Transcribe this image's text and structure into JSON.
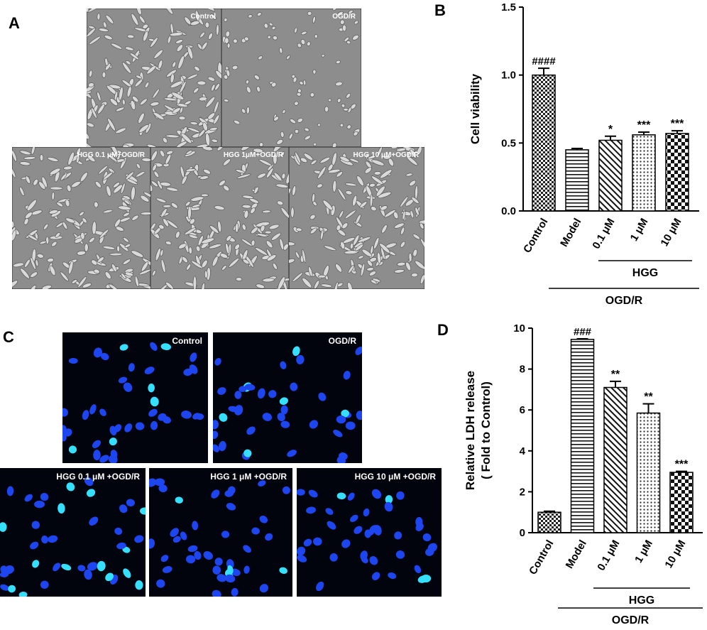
{
  "panel_labels": [
    "A",
    "B",
    "C",
    "D"
  ],
  "micrographs": {
    "A": [
      "Control",
      "OGD/R",
      "HGG 0.1 μM+OGD/R",
      "HGG 1μM+OGD/R",
      "HGG 10 μM+OGD/R"
    ],
    "C": [
      "Control",
      "OGD/R",
      "HGG 0.1 μM +OGD/R",
      "HGG 1 μM +OGD/R",
      "HGG 10 μM +OGD/R"
    ]
  },
  "chart_data": [
    {
      "type": "bar",
      "y_label": "Cell viability",
      "categories": [
        "Control",
        "Model",
        "0.1 μM",
        "1 μM",
        "10 μM"
      ],
      "values": [
        1.0,
        0.45,
        0.52,
        0.56,
        0.57
      ],
      "errors": [
        0.05,
        0.01,
        0.03,
        0.02,
        0.02
      ],
      "annotations": [
        "####",
        null,
        "*",
        "***",
        "***"
      ],
      "group_labels": [
        "HGG",
        "OGD/R"
      ],
      "color": "#000000",
      "ylim": [
        0,
        1.5
      ],
      "yticks": [
        {
          "value": 0,
          "label": "0.0"
        },
        {
          "value": 0.5,
          "label": "0.5"
        },
        {
          "value": 1,
          "label": "1.0"
        },
        {
          "value": 1.5,
          "label": "1.5"
        }
      ]
    },
    {
      "type": "bar",
      "y_label": [
        "Relative LDH release",
        "( Fold to Control)"
      ],
      "categories": [
        "Control",
        "Model",
        "0.1 μM",
        "1 μM",
        "10 μM"
      ],
      "values": [
        1.0,
        9.45,
        7.1,
        5.85,
        2.95
      ],
      "errors": [
        0.05,
        0.03,
        0.3,
        0.45,
        0.05
      ],
      "annotations": [
        null,
        "###",
        "**",
        "**",
        "***"
      ],
      "group_labels": [
        "HGG",
        "OGD/R"
      ],
      "color": "#000000",
      "ylim": [
        0,
        10
      ],
      "yticks": [
        0,
        2,
        4,
        6,
        8,
        10
      ]
    }
  ]
}
